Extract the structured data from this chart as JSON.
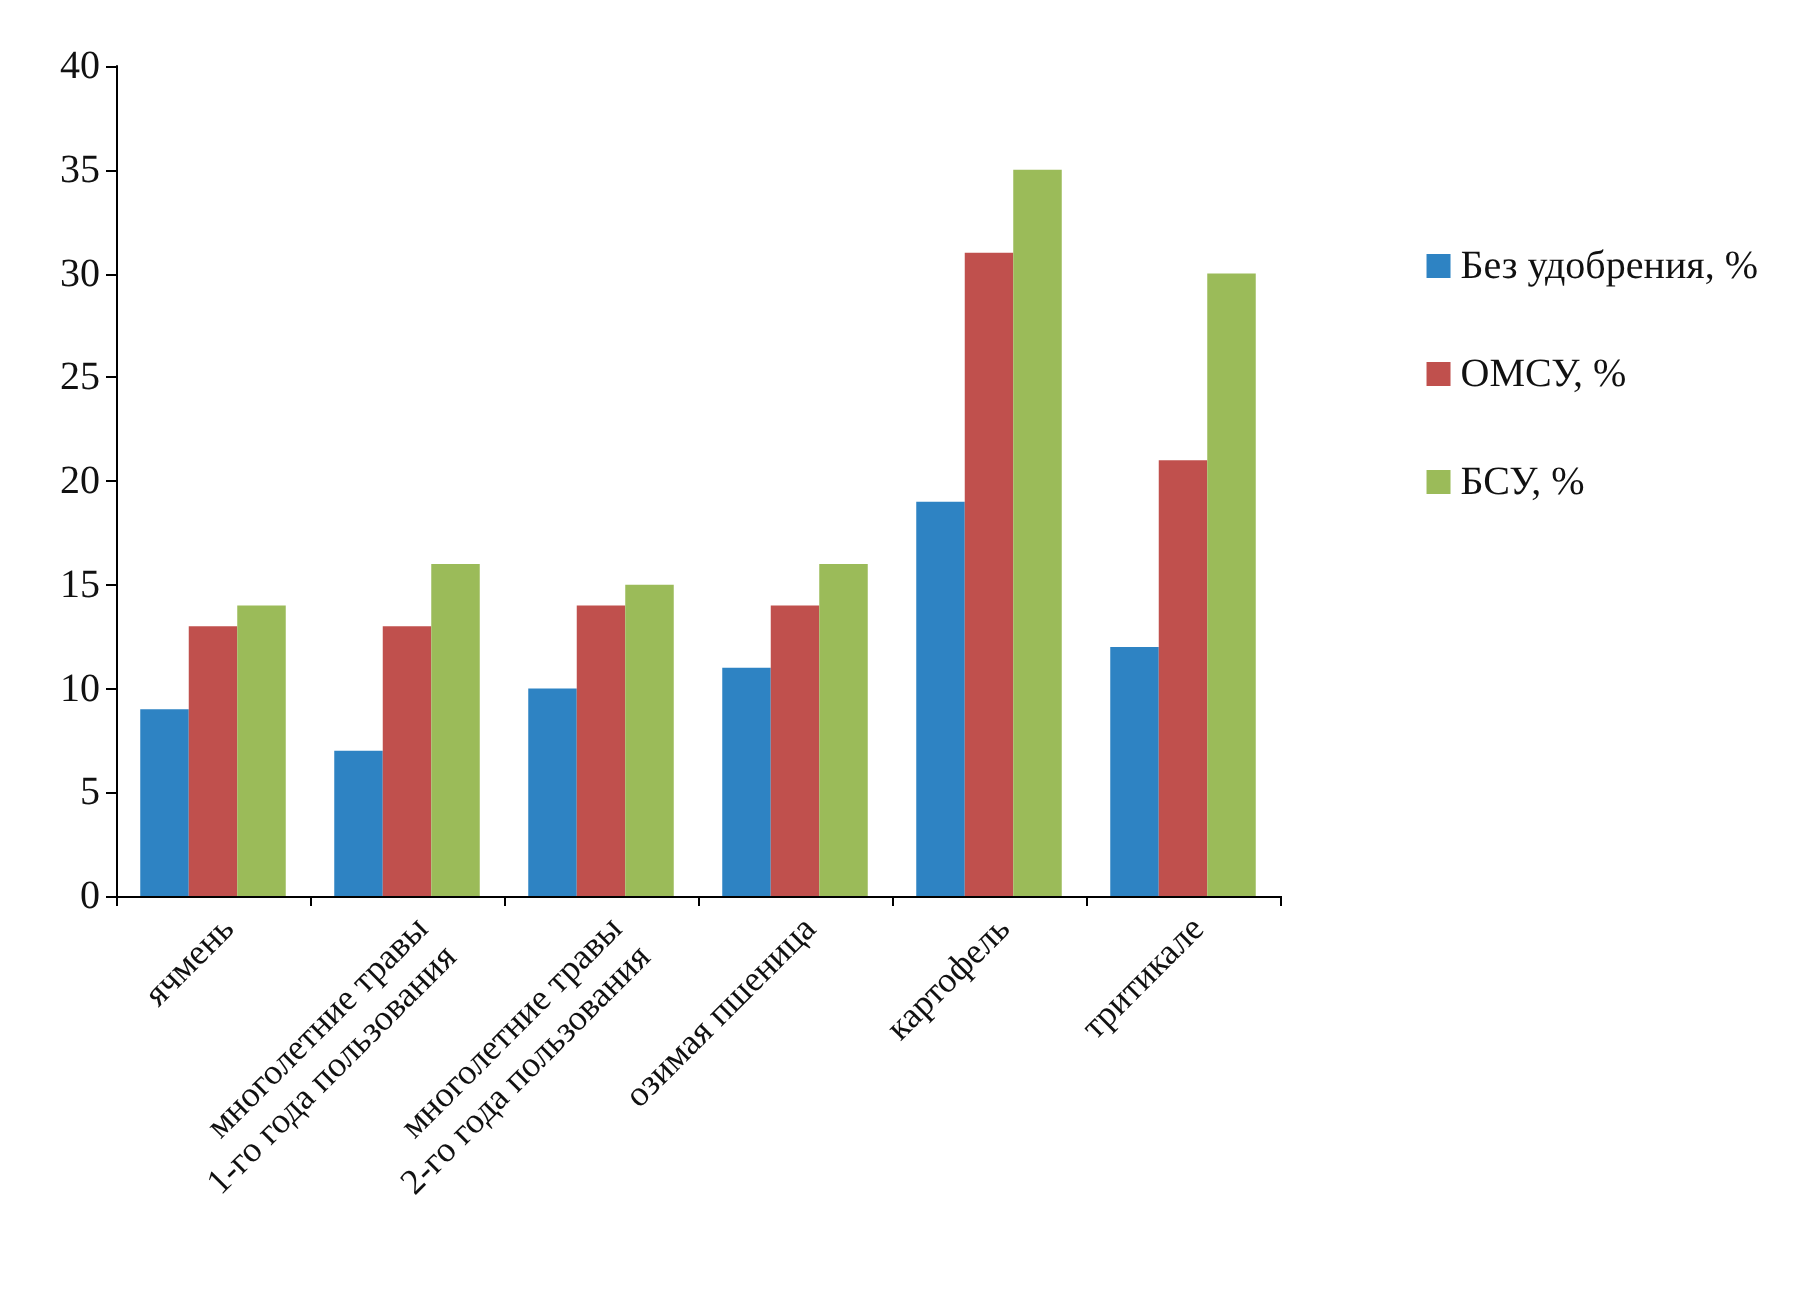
{
  "chart_data": {
    "type": "bar",
    "categories": [
      "ячмень",
      "многолетние травы\n1-го года пользования",
      "многолетние травы\n2-го года пользования",
      "озимая пшеница",
      "картофель",
      "тритикале"
    ],
    "series": [
      {
        "name": "Без удобрения, %",
        "color": "#2e83c3",
        "values": [
          9,
          7,
          10,
          11,
          19,
          12
        ]
      },
      {
        "name": "ОМСУ, %",
        "color": "#c0504d",
        "values": [
          13,
          13,
          14,
          14,
          31,
          21
        ]
      },
      {
        "name": "БСУ, %",
        "color": "#9bbb59",
        "values": [
          14,
          16,
          15,
          16,
          35,
          30
        ]
      }
    ],
    "ylim": [
      0,
      40
    ],
    "yticks": [
      0,
      5,
      10,
      15,
      20,
      25,
      30,
      35,
      40
    ],
    "grid": false,
    "legend": "right"
  }
}
